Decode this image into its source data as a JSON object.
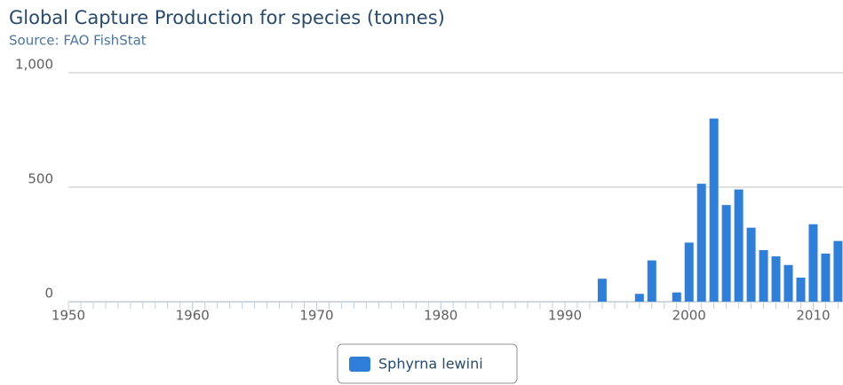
{
  "chart_data": {
    "type": "bar",
    "title": "Global Capture Production for species (tonnes)",
    "subtitle": "Source: FAO FishStat",
    "x": [
      1950,
      1951,
      1952,
      1953,
      1954,
      1955,
      1956,
      1957,
      1958,
      1959,
      1960,
      1961,
      1962,
      1963,
      1964,
      1965,
      1966,
      1967,
      1968,
      1969,
      1970,
      1971,
      1972,
      1973,
      1974,
      1975,
      1976,
      1977,
      1978,
      1979,
      1980,
      1981,
      1982,
      1983,
      1984,
      1985,
      1986,
      1987,
      1988,
      1989,
      1990,
      1991,
      1992,
      1993,
      1994,
      1995,
      1996,
      1997,
      1998,
      1999,
      2000,
      2001,
      2002,
      2003,
      2004,
      2005,
      2006,
      2007,
      2008,
      2009,
      2010,
      2011,
      2012
    ],
    "series": [
      {
        "name": "Sphyrna lewini",
        "color": "#2f7ed8",
        "values": [
          0,
          0,
          0,
          0,
          0,
          0,
          0,
          0,
          0,
          0,
          0,
          0,
          0,
          0,
          0,
          0,
          0,
          0,
          0,
          0,
          0,
          0,
          0,
          0,
          0,
          0,
          0,
          0,
          0,
          0,
          0,
          0,
          0,
          0,
          0,
          0,
          0,
          0,
          0,
          0,
          0,
          0,
          0,
          100,
          0,
          0,
          34,
          180,
          0,
          40,
          258,
          515,
          800,
          422,
          490,
          323,
          225,
          198,
          160,
          105,
          338,
          210,
          265
        ]
      }
    ],
    "xlim": [
      1950,
      2012.4
    ],
    "xticks": [
      1950,
      1960,
      1970,
      1980,
      1990,
      2000,
      2010
    ],
    "ylim": [
      0,
      1000
    ],
    "yticks": [
      0,
      500,
      {
        "value": 1000,
        "label": "1,000"
      }
    ],
    "grid": true,
    "legend": "bottom"
  }
}
